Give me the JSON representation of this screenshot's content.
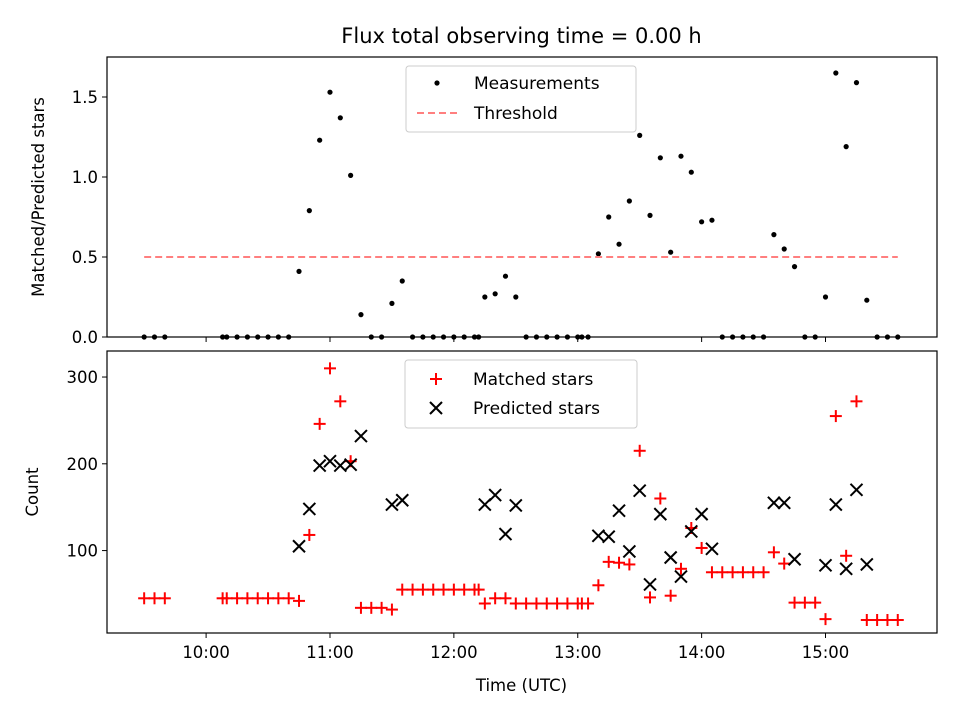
{
  "chart_data": [
    {
      "type": "scatter",
      "title": "Flux total observing time = 0.00 h",
      "xlabel": "",
      "ylabel": "Matched/Predicted stars",
      "xlim": [
        "09:12",
        "15:54"
      ],
      "ylim": [
        0,
        1.75
      ],
      "yticks": [
        0.0,
        0.5,
        1.0,
        1.5
      ],
      "yticklabels": [
        "0.0",
        "0.5",
        "1.0",
        "1.5"
      ],
      "grid": false,
      "legend_position": "top-center",
      "legend": [
        "Measurements",
        "Threshold"
      ],
      "series": [
        {
          "name": "Measurements",
          "marker": "dot",
          "color": "#000000",
          "points": [
            [
              "09:30",
              0
            ],
            [
              "09:35",
              0
            ],
            [
              "09:40",
              0
            ],
            [
              "10:08",
              0
            ],
            [
              "10:10",
              0
            ],
            [
              "10:15",
              0
            ],
            [
              "10:20",
              0
            ],
            [
              "10:25",
              0
            ],
            [
              "10:30",
              0
            ],
            [
              "10:35",
              0
            ],
            [
              "10:40",
              0
            ],
            [
              "10:45",
              0.41
            ],
            [
              "10:50",
              0.79
            ],
            [
              "10:55",
              1.23
            ],
            [
              "11:00",
              1.53
            ],
            [
              "11:05",
              1.37
            ],
            [
              "11:10",
              1.01
            ],
            [
              "11:15",
              0.14
            ],
            [
              "11:20",
              0
            ],
            [
              "11:25",
              0
            ],
            [
              "11:30",
              0.21
            ],
            [
              "11:35",
              0.35
            ],
            [
              "11:40",
              0
            ],
            [
              "11:45",
              0
            ],
            [
              "11:50",
              0
            ],
            [
              "11:55",
              0
            ],
            [
              "12:00",
              0
            ],
            [
              "12:05",
              0
            ],
            [
              "12:10",
              0
            ],
            [
              "12:12",
              0
            ],
            [
              "12:15",
              0.25
            ],
            [
              "12:20",
              0.27
            ],
            [
              "12:25",
              0.38
            ],
            [
              "12:30",
              0.25
            ],
            [
              "12:35",
              0
            ],
            [
              "12:40",
              0
            ],
            [
              "12:45",
              0
            ],
            [
              "12:50",
              0
            ],
            [
              "12:55",
              0
            ],
            [
              "13:00",
              0
            ],
            [
              "13:02",
              0
            ],
            [
              "13:05",
              0
            ],
            [
              "13:10",
              0.52
            ],
            [
              "13:15",
              0.75
            ],
            [
              "13:20",
              0.58
            ],
            [
              "13:25",
              0.85
            ],
            [
              "13:30",
              1.26
            ],
            [
              "13:35",
              0.76
            ],
            [
              "13:40",
              1.12
            ],
            [
              "13:45",
              0.53
            ],
            [
              "13:50",
              1.13
            ],
            [
              "13:55",
              1.03
            ],
            [
              "14:00",
              0.72
            ],
            [
              "14:05",
              0.73
            ],
            [
              "14:10",
              0
            ],
            [
              "14:15",
              0
            ],
            [
              "14:20",
              0
            ],
            [
              "14:25",
              0
            ],
            [
              "14:30",
              0
            ],
            [
              "14:35",
              0.64
            ],
            [
              "14:40",
              0.55
            ],
            [
              "14:45",
              0.44
            ],
            [
              "14:50",
              0
            ],
            [
              "14:55",
              0
            ],
            [
              "15:00",
              0.25
            ],
            [
              "15:05",
              1.65
            ],
            [
              "15:10",
              1.19
            ],
            [
              "15:15",
              1.59
            ],
            [
              "15:20",
              0.23
            ],
            [
              "15:25",
              0
            ],
            [
              "15:30",
              0
            ],
            [
              "15:35",
              0
            ]
          ]
        },
        {
          "name": "Threshold",
          "style": "dashed",
          "color": "#ff7f7f",
          "points": [
            [
              "09:30",
              0.5
            ],
            [
              "15:35",
              0.5
            ]
          ]
        }
      ]
    },
    {
      "type": "scatter",
      "title": "",
      "xlabel": "Time (UTC)",
      "ylabel": "Count",
      "xlim": [
        "09:12",
        "15:54"
      ],
      "ylim": [
        5,
        330
      ],
      "yticks": [
        100,
        200,
        300
      ],
      "yticklabels": [
        "100",
        "200",
        "300"
      ],
      "xticks": [
        "10:00",
        "11:00",
        "12:00",
        "13:00",
        "14:00",
        "15:00"
      ],
      "xticklabels": [
        "10:00",
        "11:00",
        "12:00",
        "13:00",
        "14:00",
        "15:00"
      ],
      "grid": false,
      "legend_position": "top-center",
      "legend": [
        "Matched stars",
        "Predicted stars"
      ],
      "series": [
        {
          "name": "Matched stars",
          "marker": "plus",
          "color": "#ff0000",
          "points": [
            [
              "09:30",
              45
            ],
            [
              "09:35",
              45
            ],
            [
              "09:40",
              45
            ],
            [
              "10:08",
              45
            ],
            [
              "10:10",
              45
            ],
            [
              "10:15",
              45
            ],
            [
              "10:20",
              45
            ],
            [
              "10:25",
              45
            ],
            [
              "10:30",
              45
            ],
            [
              "10:35",
              45
            ],
            [
              "10:40",
              45
            ],
            [
              "10:45",
              42
            ],
            [
              "10:50",
              118
            ],
            [
              "10:55",
              246
            ],
            [
              "11:00",
              310
            ],
            [
              "11:05",
              272
            ],
            [
              "11:10",
              203
            ],
            [
              "11:15",
              34
            ],
            [
              "11:20",
              34
            ],
            [
              "11:25",
              34
            ],
            [
              "11:30",
              32
            ],
            [
              "11:35",
              55
            ],
            [
              "11:40",
              55
            ],
            [
              "11:45",
              55
            ],
            [
              "11:50",
              55
            ],
            [
              "11:55",
              55
            ],
            [
              "12:00",
              55
            ],
            [
              "12:05",
              55
            ],
            [
              "12:10",
              55
            ],
            [
              "12:12",
              55
            ],
            [
              "12:15",
              39
            ],
            [
              "12:20",
              45
            ],
            [
              "12:25",
              45
            ],
            [
              "12:30",
              39
            ],
            [
              "12:35",
              39
            ],
            [
              "12:40",
              39
            ],
            [
              "12:45",
              39
            ],
            [
              "12:50",
              39
            ],
            [
              "12:55",
              39
            ],
            [
              "13:00",
              39
            ],
            [
              "13:02",
              39
            ],
            [
              "13:05",
              39
            ],
            [
              "13:10",
              60
            ],
            [
              "13:15",
              87
            ],
            [
              "13:20",
              86
            ],
            [
              "13:25",
              84
            ],
            [
              "13:30",
              215
            ],
            [
              "13:35",
              46
            ],
            [
              "13:40",
              160
            ],
            [
              "13:45",
              48
            ],
            [
              "13:50",
              79
            ],
            [
              "13:55",
              126
            ],
            [
              "14:00",
              103
            ],
            [
              "14:05",
              75
            ],
            [
              "14:10",
              75
            ],
            [
              "14:15",
              75
            ],
            [
              "14:20",
              75
            ],
            [
              "14:25",
              75
            ],
            [
              "14:30",
              75
            ],
            [
              "14:35",
              98
            ],
            [
              "14:40",
              85
            ],
            [
              "14:45",
              40
            ],
            [
              "14:50",
              40
            ],
            [
              "14:55",
              40
            ],
            [
              "15:00",
              21
            ],
            [
              "15:05",
              255
            ],
            [
              "15:10",
              94
            ],
            [
              "15:15",
              272
            ],
            [
              "15:20",
              20
            ],
            [
              "15:25",
              20
            ],
            [
              "15:30",
              20
            ],
            [
              "15:35",
              20
            ]
          ]
        },
        {
          "name": "Predicted stars",
          "marker": "x",
          "color": "#000000",
          "points": [
            [
              "10:45",
              105
            ],
            [
              "10:50",
              148
            ],
            [
              "10:55",
              198
            ],
            [
              "11:00",
              203
            ],
            [
              "11:05",
              198
            ],
            [
              "11:10",
              199
            ],
            [
              "11:15",
              232
            ],
            [
              "11:30",
              153
            ],
            [
              "11:35",
              158
            ],
            [
              "12:15",
              153
            ],
            [
              "12:20",
              164
            ],
            [
              "12:25",
              119
            ],
            [
              "12:30",
              152
            ],
            [
              "13:10",
              117
            ],
            [
              "13:15",
              116
            ],
            [
              "13:20",
              146
            ],
            [
              "13:25",
              99
            ],
            [
              "13:30",
              169
            ],
            [
              "13:35",
              61
            ],
            [
              "13:40",
              142
            ],
            [
              "13:45",
              92
            ],
            [
              "13:50",
              70
            ],
            [
              "13:55",
              122
            ],
            [
              "14:00",
              142
            ],
            [
              "14:05",
              102
            ],
            [
              "14:35",
              155
            ],
            [
              "14:40",
              155
            ],
            [
              "14:45",
              90
            ],
            [
              "15:00",
              83
            ],
            [
              "15:05",
              153
            ],
            [
              "15:10",
              79
            ],
            [
              "15:15",
              170
            ],
            [
              "15:20",
              84
            ]
          ]
        }
      ]
    }
  ]
}
